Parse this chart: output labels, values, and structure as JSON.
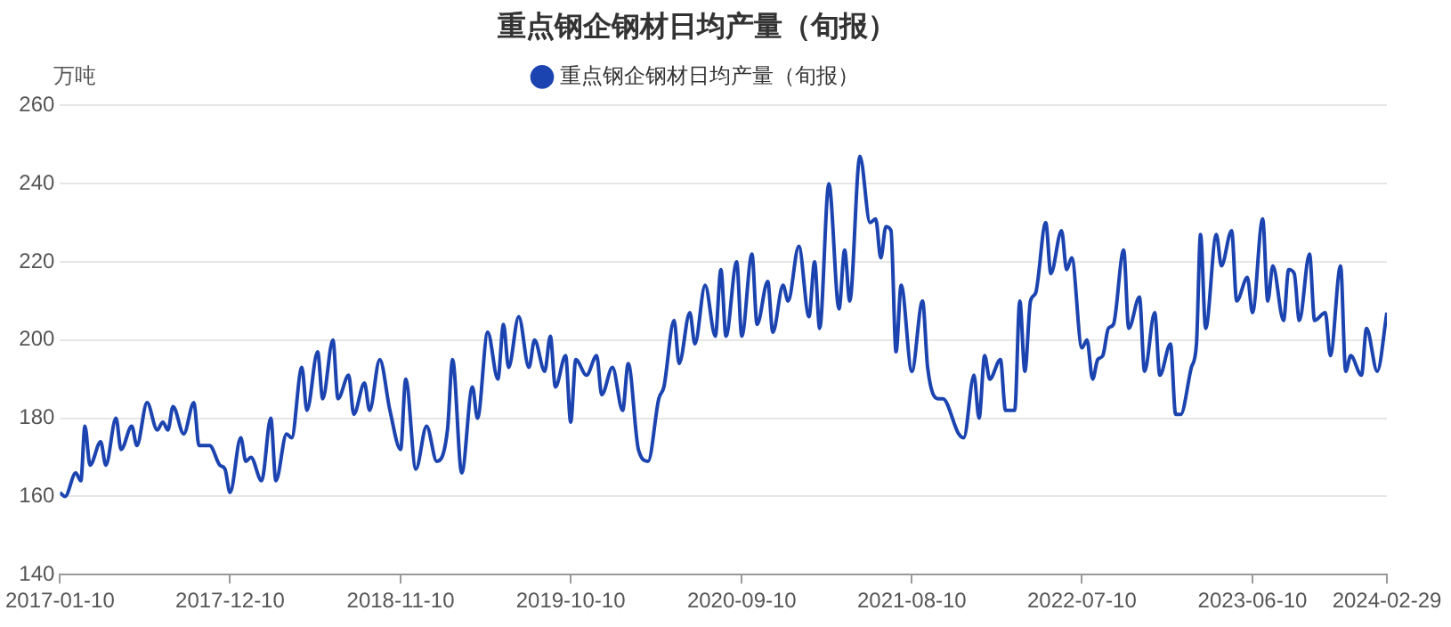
{
  "chart_data": {
    "type": "line",
    "title": "重点钢企钢材日均产量（旬报）",
    "ylabel": "万吨",
    "x": [
      "2017-01-10",
      "2017-01-20",
      "2017-02-10",
      "2017-02-20",
      "2017-02-28",
      "2017-03-10",
      "2017-03-31",
      "2017-04-10",
      "2017-04-30",
      "2017-05-10",
      "2017-05-31",
      "2017-06-10",
      "2017-06-30",
      "2017-07-20",
      "2017-07-31",
      "2017-08-10",
      "2017-08-20",
      "2017-09-10",
      "2017-09-30",
      "2017-10-10",
      "2017-10-31",
      "2017-11-20",
      "2017-11-30",
      "2017-12-10",
      "2017-12-31",
      "2018-01-10",
      "2018-01-20",
      "2018-02-10",
      "2018-02-28",
      "2018-03-10",
      "2018-03-31",
      "2018-04-10",
      "2018-04-30",
      "2018-05-10",
      "2018-05-31",
      "2018-06-10",
      "2018-06-30",
      "2018-07-10",
      "2018-07-31",
      "2018-08-10",
      "2018-08-31",
      "2018-09-10",
      "2018-09-30",
      "2018-10-20",
      "2018-11-10",
      "2018-11-20",
      "2018-12-10",
      "2018-12-31",
      "2019-01-20",
      "2019-02-10",
      "2019-02-20",
      "2019-03-10",
      "2019-03-31",
      "2019-04-10",
      "2019-04-30",
      "2019-05-20",
      "2019-05-31",
      "2019-06-10",
      "2019-06-30",
      "2019-07-20",
      "2019-07-31",
      "2019-08-20",
      "2019-08-31",
      "2019-09-10",
      "2019-09-30",
      "2019-10-10",
      "2019-10-20",
      "2019-11-10",
      "2019-11-30",
      "2019-12-10",
      "2019-12-31",
      "2020-01-20",
      "2020-01-31",
      "2020-02-20",
      "2020-03-10",
      "2020-03-31",
      "2020-04-10",
      "2020-04-30",
      "2020-05-10",
      "2020-05-31",
      "2020-06-10",
      "2020-06-30",
      "2020-07-20",
      "2020-07-31",
      "2020-08-10",
      "2020-08-31",
      "2020-09-10",
      "2020-09-30",
      "2020-10-10",
      "2020-10-31",
      "2020-11-10",
      "2020-11-30",
      "2020-12-10",
      "2020-12-31",
      "2021-01-20",
      "2021-01-31",
      "2021-02-10",
      "2021-02-28",
      "2021-03-20",
      "2021-03-31",
      "2021-04-10",
      "2021-04-30",
      "2021-05-20",
      "2021-05-31",
      "2021-06-10",
      "2021-06-20",
      "2021-06-30",
      "2021-07-10",
      "2021-07-20",
      "2021-08-10",
      "2021-08-31",
      "2021-09-10",
      "2021-09-30",
      "2021-10-10",
      "2021-11-10",
      "2021-11-20",
      "2021-12-10",
      "2021-12-20",
      "2021-12-31",
      "2022-01-10",
      "2022-01-31",
      "2022-02-10",
      "2022-02-28",
      "2022-03-10",
      "2022-03-20",
      "2022-03-31",
      "2022-04-10",
      "2022-04-30",
      "2022-05-10",
      "2022-05-31",
      "2022-06-10",
      "2022-06-20",
      "2022-07-10",
      "2022-07-20",
      "2022-07-31",
      "2022-08-10",
      "2022-08-20",
      "2022-08-31",
      "2022-09-10",
      "2022-09-30",
      "2022-10-10",
      "2022-10-31",
      "2022-11-10",
      "2022-11-30",
      "2022-12-10",
      "2022-12-31",
      "2023-01-10",
      "2023-01-20",
      "2023-02-10",
      "2023-02-20",
      "2023-02-28",
      "2023-03-10",
      "2023-03-31",
      "2023-04-10",
      "2023-04-30",
      "2023-05-10",
      "2023-05-31",
      "2023-06-10",
      "2023-06-30",
      "2023-07-10",
      "2023-07-20",
      "2023-08-10",
      "2023-08-20",
      "2023-08-31",
      "2023-09-10",
      "2023-09-30",
      "2023-10-10",
      "2023-10-31",
      "2023-11-10",
      "2023-11-30",
      "2023-12-10",
      "2023-12-20",
      "2024-01-10",
      "2024-01-20",
      "2024-02-10",
      "2024-02-29"
    ],
    "series": [
      {
        "name": "重点钢企钢材日均产量（旬报）",
        "color": "#1c44b0",
        "values": [
          161,
          160,
          166,
          164,
          178,
          168,
          174,
          168,
          180,
          172,
          178,
          173,
          184,
          177,
          179,
          177,
          183,
          176,
          184,
          173,
          173,
          168,
          167,
          161,
          175,
          169,
          170,
          164,
          180,
          164,
          176,
          175,
          193,
          182,
          197,
          185,
          200,
          185,
          191,
          181,
          189,
          182,
          195,
          182,
          172,
          190,
          167,
          178,
          169,
          177,
          195,
          166,
          188,
          180,
          202,
          190,
          204,
          193,
          206,
          193,
          200,
          192,
          201,
          188,
          196,
          179,
          195,
          191,
          196,
          186,
          193,
          182,
          194,
          172,
          169,
          185,
          188,
          205,
          194,
          207,
          199,
          214,
          201,
          218,
          201,
          220,
          201,
          222,
          204,
          215,
          202,
          214,
          210,
          224,
          206,
          220,
          203,
          240,
          208,
          223,
          210,
          247,
          230,
          231,
          221,
          229,
          228,
          197,
          214,
          192,
          210,
          193,
          185,
          185,
          176,
          175,
          191,
          180,
          196,
          190,
          195,
          182,
          182,
          210,
          192,
          210,
          212,
          230,
          217,
          228,
          218,
          221,
          198,
          200,
          190,
          195,
          196,
          203,
          204,
          223,
          203,
          211,
          192,
          207,
          191,
          199,
          181,
          181,
          193,
          199,
          227,
          203,
          227,
          219,
          228,
          210,
          216,
          207,
          231,
          210,
          219,
          205,
          218,
          217,
          205,
          222,
          205,
          207,
          196,
          219,
          192,
          196,
          191,
          203,
          192,
          207
        ]
      }
    ],
    "xlim": [
      "2017-01-10",
      "2024-02-29"
    ],
    "xticks": [
      "2017-01-10",
      "2017-12-10",
      "2018-11-10",
      "2019-10-10",
      "2020-09-10",
      "2021-08-10",
      "2022-07-10",
      "2023-06-10",
      "2024-02-29"
    ],
    "ylim": [
      140,
      260
    ],
    "yticks": [
      140,
      160,
      180,
      200,
      220,
      240,
      260
    ],
    "grid": "y",
    "legend": "top",
    "marker": "none",
    "line_style": "solid"
  }
}
